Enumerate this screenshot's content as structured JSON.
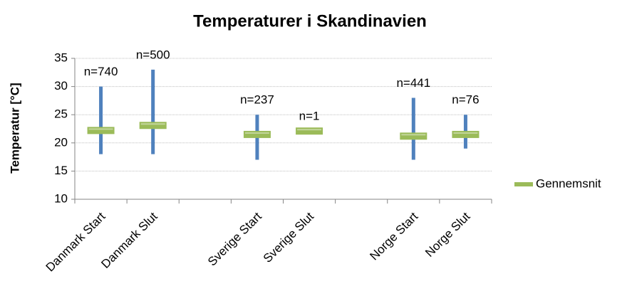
{
  "chart_data": {
    "type": "range",
    "title": "Temperaturer i Skandinavien",
    "y_label": "Temperatur [°C]",
    "categories": [
      "Danmark Start",
      "Danmark Slut",
      null,
      "Sverige Start",
      "Sverige Slut",
      null,
      "Norge Start",
      "Norge Slut"
    ],
    "series": [
      {
        "name": "Gennemsnit",
        "color": "#9bbb59",
        "values": [
          22.2,
          23.1,
          null,
          21.5,
          22.1,
          null,
          21.2,
          21.5
        ]
      }
    ],
    "ranges": {
      "color": "#4f81bd",
      "low": [
        18,
        18,
        null,
        17,
        null,
        null,
        17,
        19
      ],
      "high": [
        30,
        33,
        null,
        25,
        null,
        null,
        28,
        25
      ]
    },
    "n_labels": [
      "n=740",
      "n=500",
      null,
      "n=237",
      "n=1",
      null,
      "n=441",
      "n=76"
    ],
    "ylim": [
      10,
      35
    ],
    "yticks": [
      10,
      15,
      20,
      25,
      30,
      35
    ],
    "grid": true,
    "legend": "right"
  }
}
